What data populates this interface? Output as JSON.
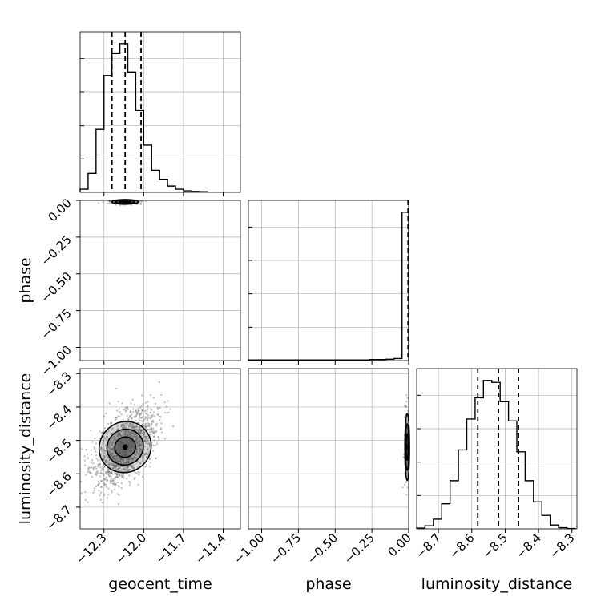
{
  "chart_data": {
    "type": "corner",
    "parameters": [
      "geocent_time",
      "phase",
      "luminosity_distance"
    ],
    "axis_labels": {
      "geocent_time": "geocent_time",
      "phase": "phase",
      "luminosity_distance": "luminosity_distance"
    },
    "ranges": {
      "geocent_time": [
        -12.48,
        -11.27
      ],
      "phase": [
        -1.09,
        0.0
      ],
      "luminosity_distance": [
        -8.765,
        -8.285
      ]
    },
    "ticks": {
      "geocent_time": [
        -12.3,
        -12.0,
        -11.7,
        -11.4
      ],
      "phase": [
        -1.0,
        -0.75,
        -0.5,
        -0.25,
        0.0
      ],
      "luminosity_distance": [
        -8.7,
        -8.6,
        -8.5,
        -8.4,
        -8.3
      ]
    },
    "tick_labels": {
      "geocent_time": [
        "−12.3",
        "−12.0",
        "−11.7",
        "−11.4"
      ],
      "phase": [
        "−1.00",
        "−0.75",
        "−0.50",
        "−0.25",
        "0.00"
      ],
      "luminosity_distance": [
        "−8.7",
        "−8.6",
        "−8.5",
        "−8.4",
        "−8.3"
      ]
    },
    "grid": true,
    "histogram_1d": {
      "geocent_time": {
        "edges": [
          -12.48,
          -12.42,
          -12.36,
          -12.3,
          -12.24,
          -12.18,
          -12.12,
          -12.06,
          -12.0,
          -11.94,
          -11.88,
          -11.82,
          -11.76,
          -11.7,
          -11.64,
          -11.58,
          -11.52
        ],
        "counts": [
          1,
          6,
          20,
          37,
          44,
          47,
          38,
          26,
          15,
          7,
          4,
          2,
          1,
          0.5,
          0.3,
          0.2
        ],
        "quantiles": [
          -12.24,
          -12.14,
          -12.02
        ]
      },
      "phase": {
        "edges": [
          -1.09,
          -1.035,
          -0.98,
          -0.925,
          -0.87,
          -0.815,
          -0.76,
          -0.705,
          -0.65,
          -0.595,
          -0.54,
          -0.485,
          -0.43,
          -0.375,
          -0.32,
          -0.265,
          -0.21,
          -0.155,
          -0.1,
          -0.045,
          0.0
        ],
        "counts": [
          0.2,
          0.2,
          0.2,
          0.2,
          0.2,
          0.2,
          0.2,
          0.2,
          0.2,
          0.2,
          0.2,
          0.2,
          0.2,
          0.2,
          0.2,
          0.3,
          0.3,
          0.4,
          0.6,
          43.5
        ],
        "quantiles": [
          -0.004,
          -0.002,
          -0.001
        ]
      },
      "luminosity_distance": {
        "edges": [
          -8.765,
          -8.74,
          -8.715,
          -8.69,
          -8.665,
          -8.64,
          -8.615,
          -8.59,
          -8.565,
          -8.54,
          -8.515,
          -8.49,
          -8.465,
          -8.44,
          -8.415,
          -8.39,
          -8.365,
          -8.34,
          -8.315,
          -8.29
        ],
        "counts": [
          0.2,
          0.8,
          2.5,
          6.5,
          12.5,
          20.5,
          28.5,
          34,
          38.5,
          38,
          33,
          28,
          20,
          12.5,
          7,
          3.5,
          1,
          0.3,
          0.1
        ],
        "quantiles": [
          -8.582,
          -8.52,
          -8.46
        ]
      }
    },
    "panels_2d": [
      {
        "x": "geocent_time",
        "y": "phase",
        "center": [
          -12.14,
          -0.01
        ],
        "spread": [
          0.05,
          0.008
        ]
      },
      {
        "x": "geocent_time",
        "y": "luminosity_distance",
        "center": [
          -12.14,
          -8.52
        ],
        "spread": [
          0.1,
          0.05
        ]
      },
      {
        "x": "phase",
        "y": "luminosity_distance",
        "center": [
          -0.01,
          -8.52
        ],
        "spread": [
          0.008,
          0.05
        ]
      }
    ],
    "colors": {
      "line": "#000000",
      "grid": "#b0b0b0",
      "density": "#555555"
    }
  }
}
